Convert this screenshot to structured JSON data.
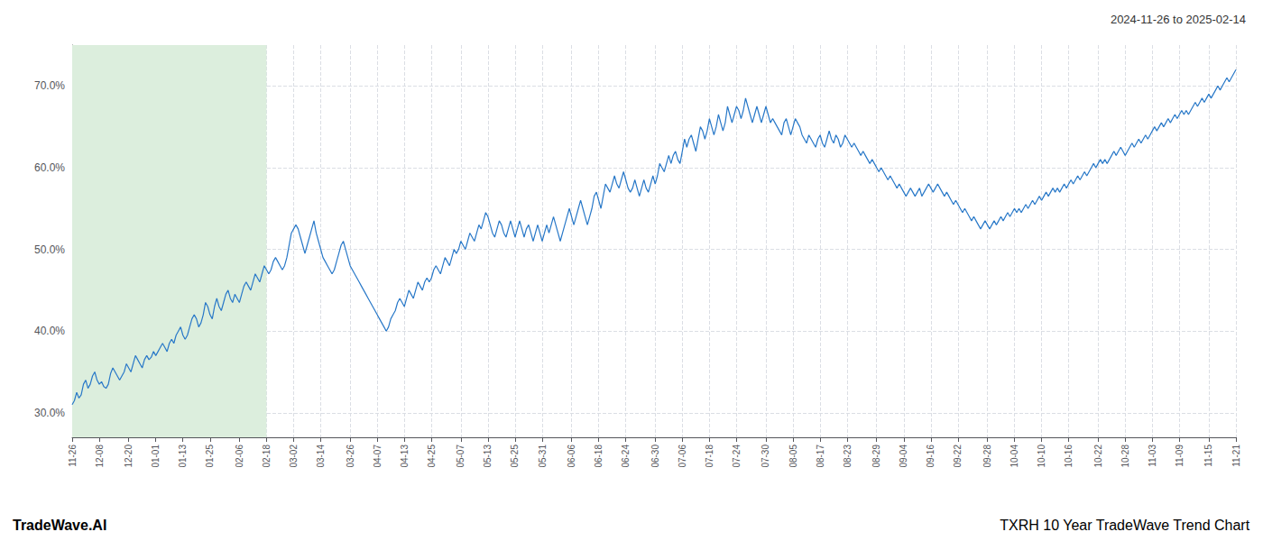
{
  "chart_data": {
    "type": "line",
    "title": "2024-11-26 to 2025-02-14",
    "annotations": [
      "TradeWave.AI",
      "TXRH 10 Year TradeWave Trend Chart"
    ],
    "color": "#2878c8",
    "grid": true,
    "shaded_span": {
      "start": "11-26",
      "end": "02-18",
      "color": "#dceedd"
    },
    "ylim": [
      27.0,
      75.0
    ],
    "yticks": [
      {
        "value": 30.0,
        "label": "30.0%"
      },
      {
        "value": 40.0,
        "label": "40.0%"
      },
      {
        "value": 50.0,
        "label": "50.0%"
      },
      {
        "value": 60.0,
        "label": "60.0%"
      },
      {
        "value": 70.0,
        "label": "70.0%"
      }
    ],
    "categories": [
      "11-26",
      null,
      null,
      null,
      null,
      null,
      null,
      null,
      null,
      null,
      null,
      null,
      "12-08",
      null,
      null,
      null,
      null,
      null,
      null,
      null,
      null,
      null,
      null,
      null,
      null,
      "12-20",
      null,
      null,
      null,
      null,
      null,
      null,
      null,
      null,
      null,
      null,
      null,
      "01-01",
      null,
      null,
      null,
      null,
      null,
      null,
      null,
      null,
      null,
      null,
      null,
      "01-13",
      null,
      null,
      null,
      null,
      null,
      null,
      null,
      null,
      null,
      null,
      null,
      "01-25",
      null,
      null,
      null,
      null,
      null,
      null,
      null,
      null,
      null,
      null,
      null,
      null,
      "02-06",
      null,
      null,
      null,
      null,
      null,
      null,
      null,
      null,
      null,
      null,
      null,
      "02-18",
      null,
      null,
      null,
      null,
      null,
      null,
      null,
      null,
      null,
      null,
      null,
      "03-02",
      null,
      null,
      null,
      null,
      null,
      null,
      null,
      null,
      null,
      null,
      null,
      "03-14",
      null,
      null,
      null,
      null,
      null,
      null,
      null,
      null,
      null,
      null,
      null,
      null,
      "03-26",
      null,
      null,
      null,
      null,
      null,
      null,
      null,
      null,
      null,
      null,
      null,
      "04-07",
      null,
      null,
      null,
      null,
      null,
      null,
      null,
      null,
      null,
      null,
      null,
      "04-13",
      null,
      null,
      null,
      null,
      null,
      null,
      null,
      null,
      null,
      null,
      null,
      "04-25",
      null,
      null,
      null,
      null,
      null,
      null,
      null,
      null,
      null,
      null,
      null,
      null,
      "05-07",
      null,
      null,
      null,
      null,
      null,
      null,
      null,
      null,
      null,
      null,
      null,
      "05-13",
      null,
      null,
      null,
      null,
      null,
      null,
      null,
      null,
      null,
      null,
      null,
      "05-25",
      null,
      null,
      null,
      null,
      null,
      null,
      null,
      null,
      null,
      null,
      null,
      "05-31",
      null,
      null,
      null,
      null,
      null,
      null,
      null,
      null,
      null,
      null,
      null,
      null,
      "06-06",
      null,
      null,
      null,
      null,
      null,
      null,
      null,
      null,
      null,
      null,
      null,
      "06-18",
      null,
      null,
      null,
      null,
      null,
      null,
      null,
      null,
      null,
      null,
      null,
      "06-24",
      null,
      null,
      null,
      null,
      null,
      null,
      null,
      null,
      null,
      null,
      null,
      null,
      "06-30",
      null,
      null,
      null,
      null,
      null,
      null,
      null,
      null,
      null,
      null,
      null,
      "07-06",
      null,
      null,
      null,
      null,
      null,
      null,
      null,
      null,
      null,
      null,
      null,
      "07-18",
      null,
      null,
      null,
      null,
      null,
      null,
      null,
      null,
      null,
      null,
      null,
      "07-24",
      null,
      null,
      null,
      null,
      null,
      null,
      null,
      null,
      null,
      null,
      null,
      null,
      "07-30",
      null,
      null,
      null,
      null,
      null,
      null,
      null,
      null,
      null,
      null,
      null,
      "08-05",
      null,
      null,
      null,
      null,
      null,
      null,
      null,
      null,
      null,
      null,
      null,
      "08-17",
      null,
      null,
      null,
      null,
      null,
      null,
      null,
      null,
      null,
      null,
      null,
      "08-23",
      null,
      null,
      null,
      null,
      null,
      null,
      null,
      null,
      null,
      null,
      null,
      null,
      "08-29",
      null,
      null,
      null,
      null,
      null,
      null,
      null,
      null,
      null,
      null,
      null,
      "09-04",
      null,
      null,
      null,
      null,
      null,
      null,
      null,
      null,
      null,
      null,
      null,
      "09-16",
      null,
      null,
      null,
      null,
      null,
      null,
      null,
      null,
      null,
      null,
      null,
      "09-22",
      null,
      null,
      null,
      null,
      null,
      null,
      null,
      null,
      null,
      null,
      null,
      null,
      "09-28",
      null,
      null,
      null,
      null,
      null,
      null,
      null,
      null,
      null,
      null,
      null,
      "10-04",
      null,
      null,
      null,
      null,
      null,
      null,
      null,
      null,
      null,
      null,
      null,
      "10-10",
      null,
      null,
      null,
      null,
      null,
      null,
      null,
      null,
      null,
      null,
      null,
      "10-16",
      null,
      null,
      null,
      null,
      null,
      null,
      null,
      null,
      null,
      null,
      null,
      null,
      "10-22",
      null,
      null,
      null,
      null,
      null,
      null,
      null,
      null,
      null,
      null,
      null,
      "10-28",
      null,
      null,
      null,
      null,
      null,
      null,
      null,
      null,
      null,
      null,
      null,
      "11-03",
      null,
      null,
      null,
      null,
      null,
      null,
      null,
      null,
      null,
      null,
      null,
      "11-09",
      null,
      null,
      null,
      null,
      null,
      null,
      null,
      null,
      null,
      null,
      null,
      null,
      "11-15",
      null,
      null,
      null,
      null,
      null,
      null,
      null,
      null,
      null,
      null,
      null,
      "11-21"
    ],
    "values": [
      31.0,
      31.5,
      32.5,
      31.8,
      32.2,
      33.5,
      34.0,
      33.0,
      33.5,
      34.5,
      35.0,
      34.0,
      33.5,
      33.8,
      33.2,
      33.0,
      33.5,
      34.8,
      35.5,
      35.0,
      34.5,
      34.0,
      34.5,
      35.0,
      36.0,
      35.5,
      35.0,
      36.0,
      37.0,
      36.5,
      36.0,
      35.5,
      36.5,
      37.0,
      36.5,
      36.8,
      37.5,
      37.0,
      37.5,
      38.0,
      38.5,
      38.0,
      37.5,
      38.5,
      39.0,
      38.5,
      39.5,
      40.0,
      40.5,
      39.5,
      39.0,
      39.5,
      40.5,
      41.5,
      42.0,
      41.5,
      40.5,
      41.0,
      42.0,
      43.5,
      43.0,
      42.0,
      41.5,
      43.0,
      44.0,
      43.0,
      42.5,
      43.5,
      44.5,
      45.0,
      44.0,
      43.5,
      44.5,
      44.0,
      43.5,
      44.5,
      45.5,
      46.0,
      45.5,
      45.0,
      46.0,
      47.0,
      46.5,
      46.0,
      47.0,
      48.0,
      47.5,
      47.0,
      47.5,
      48.5,
      49.0,
      48.5,
      48.0,
      47.5,
      48.0,
      49.0,
      50.5,
      52.0,
      52.5,
      53.0,
      52.5,
      51.5,
      50.5,
      49.5,
      50.5,
      51.5,
      52.5,
      53.5,
      52.0,
      51.0,
      50.0,
      49.0,
      48.5,
      48.0,
      47.5,
      47.0,
      47.5,
      48.5,
      49.5,
      50.5,
      51.0,
      50.0,
      49.0,
      48.0,
      47.5,
      47.0,
      46.5,
      46.0,
      45.5,
      45.0,
      44.5,
      44.0,
      43.5,
      43.0,
      42.5,
      42.0,
      41.5,
      41.0,
      40.5,
      40.0,
      40.5,
      41.5,
      42.0,
      42.5,
      43.5,
      44.0,
      43.5,
      43.0,
      44.0,
      45.0,
      44.5,
      44.0,
      45.0,
      46.0,
      45.5,
      45.0,
      46.0,
      46.5,
      46.0,
      46.5,
      47.5,
      48.0,
      47.5,
      47.0,
      48.0,
      49.0,
      48.5,
      48.0,
      49.0,
      50.0,
      49.5,
      50.0,
      51.0,
      50.5,
      50.0,
      51.0,
      52.0,
      51.5,
      51.0,
      52.0,
      53.0,
      52.5,
      53.5,
      54.5,
      54.0,
      53.0,
      52.0,
      51.5,
      52.5,
      53.5,
      53.0,
      52.0,
      51.5,
      52.5,
      53.5,
      52.5,
      51.5,
      52.5,
      53.5,
      52.5,
      51.5,
      52.5,
      53.0,
      52.0,
      51.0,
      52.0,
      53.0,
      52.0,
      51.0,
      52.0,
      53.0,
      52.0,
      53.0,
      54.0,
      53.0,
      52.0,
      51.0,
      52.0,
      53.0,
      54.0,
      55.0,
      54.0,
      53.0,
      54.0,
      55.0,
      56.0,
      55.0,
      54.0,
      53.0,
      54.0,
      55.0,
      56.5,
      57.0,
      56.0,
      55.0,
      56.5,
      58.0,
      57.5,
      57.0,
      58.0,
      59.0,
      58.0,
      57.5,
      58.5,
      59.5,
      58.5,
      57.5,
      57.0,
      57.5,
      58.5,
      57.5,
      56.5,
      57.5,
      58.5,
      57.5,
      57.0,
      58.0,
      59.0,
      58.0,
      59.0,
      60.5,
      60.0,
      59.5,
      60.5,
      61.5,
      60.5,
      61.5,
      62.0,
      61.0,
      60.5,
      62.0,
      63.5,
      62.5,
      63.5,
      64.0,
      63.0,
      62.0,
      63.5,
      65.0,
      64.5,
      63.5,
      64.5,
      66.0,
      65.0,
      64.0,
      65.0,
      66.5,
      65.5,
      64.5,
      65.5,
      67.5,
      66.5,
      65.5,
      66.5,
      67.5,
      67.0,
      66.0,
      67.0,
      68.5,
      67.5,
      66.5,
      65.5,
      66.5,
      67.5,
      66.5,
      65.5,
      66.5,
      67.5,
      66.5,
      65.5,
      66.0,
      65.5,
      65.0,
      64.5,
      64.0,
      65.5,
      66.0,
      65.0,
      64.0,
      65.0,
      66.0,
      65.5,
      65.0,
      64.0,
      63.5,
      63.0,
      64.0,
      63.5,
      63.0,
      62.5,
      63.5,
      64.0,
      63.0,
      62.5,
      63.5,
      64.5,
      63.5,
      63.0,
      64.0,
      63.5,
      62.5,
      63.0,
      64.0,
      63.5,
      63.0,
      62.5,
      63.0,
      62.5,
      62.0,
      61.5,
      62.0,
      61.5,
      61.0,
      60.5,
      61.0,
      60.5,
      60.0,
      59.5,
      60.0,
      59.5,
      59.0,
      58.5,
      59.0,
      58.5,
      58.0,
      57.5,
      58.0,
      57.5,
      57.0,
      56.5,
      57.0,
      57.5,
      57.0,
      56.5,
      57.0,
      57.5,
      56.5,
      57.0,
      57.5,
      58.0,
      57.5,
      57.0,
      57.5,
      58.0,
      57.5,
      57.0,
      56.5,
      57.0,
      56.5,
      56.0,
      55.5,
      56.0,
      55.5,
      55.0,
      54.5,
      55.0,
      54.5,
      54.0,
      53.5,
      54.0,
      53.5,
      53.0,
      52.5,
      53.0,
      53.5,
      53.0,
      52.5,
      53.0,
      53.5,
      53.0,
      53.5,
      54.0,
      53.5,
      54.0,
      54.5,
      54.0,
      54.5,
      55.0,
      54.5,
      55.0,
      54.5,
      55.0,
      55.5,
      55.0,
      55.5,
      56.0,
      55.5,
      56.0,
      56.5,
      56.0,
      56.5,
      57.0,
      56.5,
      57.0,
      57.5,
      57.0,
      57.5,
      57.0,
      57.5,
      58.0,
      57.5,
      58.0,
      58.5,
      58.0,
      58.5,
      59.0,
      58.5,
      59.0,
      59.5,
      59.0,
      59.5,
      60.0,
      60.5,
      60.0,
      60.5,
      61.0,
      60.5,
      61.0,
      60.5,
      61.0,
      61.5,
      62.0,
      61.5,
      62.0,
      62.5,
      62.0,
      61.5,
      62.0,
      62.5,
      63.0,
      62.5,
      63.0,
      63.5,
      63.0,
      63.5,
      64.0,
      63.5,
      64.0,
      64.5,
      65.0,
      64.5,
      65.0,
      65.5,
      65.0,
      65.5,
      66.0,
      65.5,
      66.0,
      66.5,
      66.0,
      66.5,
      67.0,
      66.5,
      67.0,
      66.5,
      67.0,
      67.5,
      68.0,
      67.5,
      68.0,
      68.5,
      68.0,
      68.5,
      69.0,
      68.5,
      69.0,
      69.5,
      70.0,
      69.5,
      70.0,
      70.5,
      71.0,
      70.5,
      71.0,
      71.5,
      72.0
    ]
  }
}
